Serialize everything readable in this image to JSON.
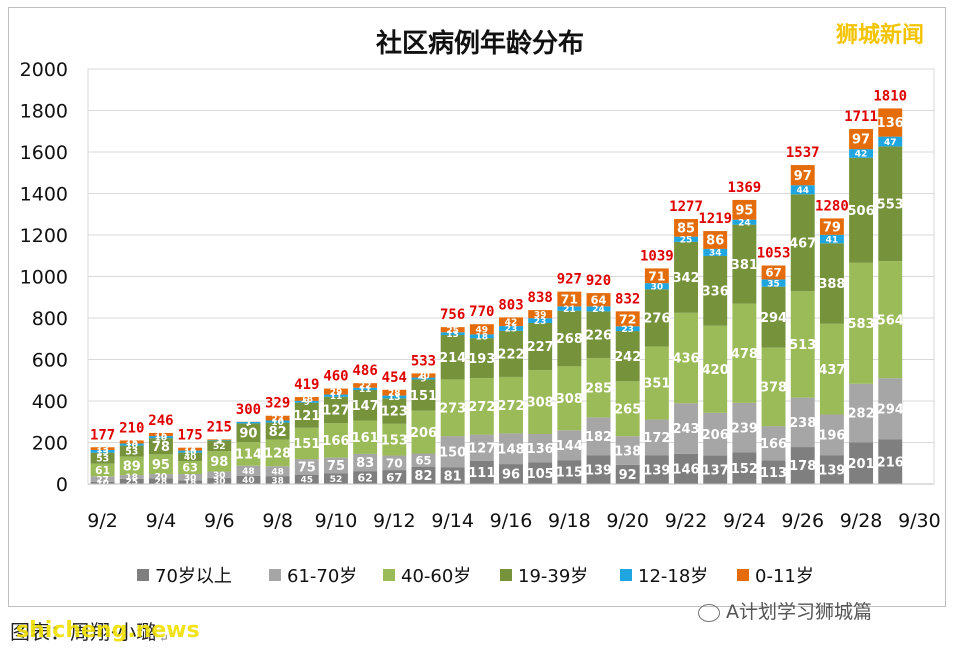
{
  "brand": "狮城新闻",
  "footer": {
    "credit_prefix": "图表：",
    "credit_name": "周翔·小璐",
    "site": "shicheng.news",
    "wechat_account": "A计划学习狮城篇"
  },
  "colors": {
    "70+": "#7f7f7f",
    "61-70": "#a6a6a6",
    "40-60": "#9bbb59",
    "19-39": "#76933c",
    "12-18": "#1fa5e0",
    "0-11": "#e46c0a",
    "total_label": "#e00000"
  },
  "chart_data": {
    "type": "bar",
    "stacked": true,
    "title": "社区病例年龄分布",
    "xlabel": "",
    "ylabel": "",
    "ylim": [
      0,
      2000
    ],
    "yticks": [
      0,
      200,
      400,
      600,
      800,
      1000,
      1200,
      1400,
      1600,
      1800,
      2000
    ],
    "xticks": [
      "9/2",
      "9/4",
      "9/6",
      "9/8",
      "9/10",
      "9/12",
      "9/14",
      "9/16",
      "9/18",
      "9/20",
      "9/22",
      "9/24",
      "9/26",
      "9/28",
      "9/30"
    ],
    "legend_position": "bottom",
    "categories": [
      "9/2",
      "9/3",
      "9/4",
      "9/5",
      "9/6",
      "9/7",
      "9/8",
      "9/9",
      "9/10",
      "9/11",
      "9/12",
      "9/13",
      "9/14",
      "9/15",
      "9/16",
      "9/17",
      "9/18",
      "9/19",
      "9/20",
      "9/21",
      "9/22",
      "9/23",
      "9/24",
      "9/25",
      "9/26",
      "9/27",
      "9/28",
      "9/29"
    ],
    "series": [
      {
        "name": "70岁以上",
        "values": [
          10,
          25,
          28,
          18,
          30,
          40,
          38,
          45,
          52,
          62,
          67,
          82,
          81,
          111,
          96,
          105,
          115,
          139,
          92,
          139,
          146,
          137,
          152,
          113,
          178,
          139,
          201,
          216
        ]
      },
      {
        "name": "61-70岁",
        "values": [
          27,
          18,
          20,
          30,
          30,
          48,
          48,
          75,
          75,
          83,
          70,
          65,
          150,
          127,
          148,
          136,
          144,
          182,
          138,
          172,
          243,
          206,
          239,
          166,
          238,
          196,
          282,
          294
        ]
      },
      {
        "name": "40-60岁",
        "values": [
          61,
          89,
          95,
          63,
          98,
          114,
          128,
          151,
          166,
          161,
          153,
          206,
          273,
          272,
          272,
          308,
          308,
          285,
          265,
          351,
          436,
          420,
          478,
          378,
          513,
          437,
          583,
          564
        ]
      },
      {
        "name": "19-39岁",
        "values": [
          53,
          53,
          78,
          40,
          52,
          90,
          82,
          121,
          127,
          147,
          123,
          151,
          214,
          193,
          222,
          227,
          268,
          226,
          242,
          276,
          342,
          336,
          381,
          294,
          467,
          388,
          506,
          553
        ]
      },
      {
        "name": "12-18岁",
        "values": [
          13,
          10,
          10,
          10,
          2,
          7,
          10,
          9,
          11,
          11,
          13,
          9,
          13,
          18,
          23,
          23,
          21,
          24,
          23,
          30,
          25,
          34,
          24,
          35,
          44,
          41,
          42,
          47
        ]
      },
      {
        "name": "0-11岁",
        "values": [
          13,
          15,
          15,
          14,
          3,
          1,
          23,
          18,
          29,
          22,
          28,
          20,
          25,
          49,
          42,
          39,
          71,
          64,
          72,
          71,
          85,
          86,
          95,
          67,
          97,
          79,
          97,
          136
        ]
      }
    ],
    "totals": [
      177,
      210,
      246,
      175,
      215,
      300,
      329,
      419,
      460,
      486,
      454,
      533,
      756,
      770,
      803,
      838,
      927,
      920,
      832,
      1039,
      1277,
      1219,
      1369,
      1053,
      1537,
      1280,
      1711,
      1810
    ]
  }
}
